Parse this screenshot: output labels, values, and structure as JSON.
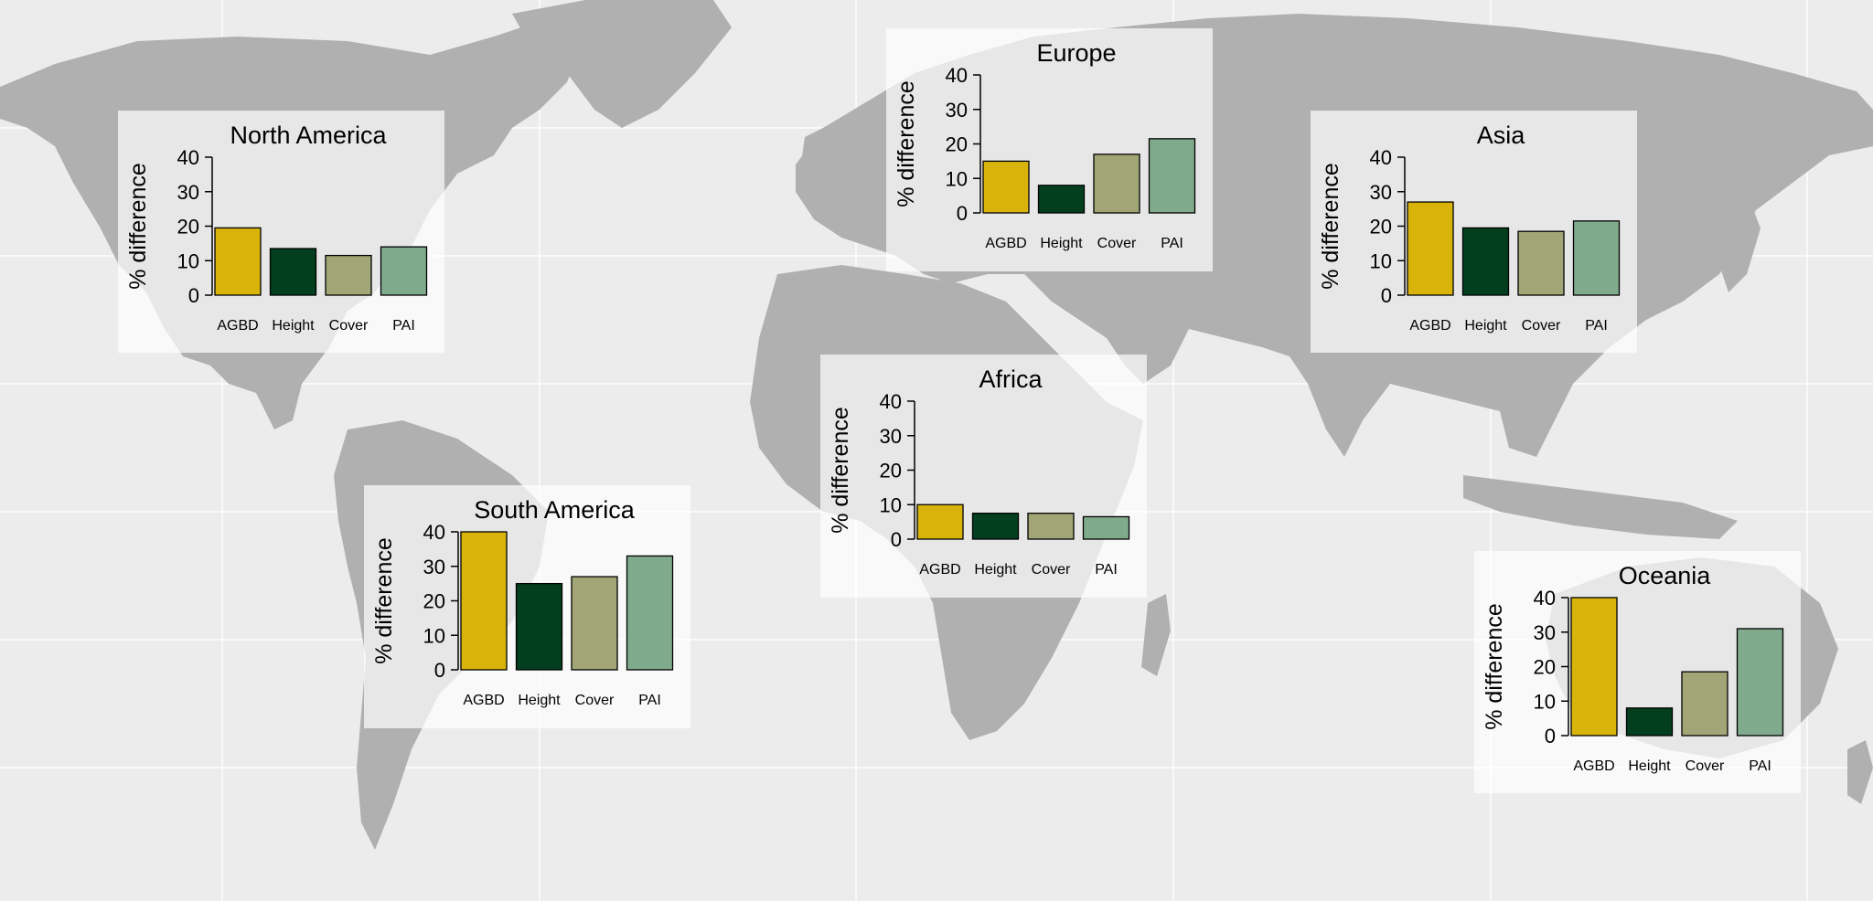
{
  "colors": {
    "ocean": "#ececec",
    "land": "#b0b0b0",
    "grid": "#ffffff",
    "panel": "#ffffff",
    "bar_outline": "#000000"
  },
  "chart_data": [
    {
      "type": "bar",
      "title": "North America",
      "ylabel": "% difference",
      "ylim": [
        0,
        40
      ],
      "yticks": [
        0,
        10,
        20,
        30,
        40
      ],
      "categories": [
        "AGBD",
        "Height",
        "Cover",
        "PAI"
      ],
      "values": [
        19.5,
        13.5,
        11.5,
        14
      ],
      "bar_colors": [
        "#d8b40a",
        "#033f1e",
        "#a2a677",
        "#80aa8c"
      ]
    },
    {
      "type": "bar",
      "title": "Europe",
      "ylabel": "% difference",
      "ylim": [
        0,
        40
      ],
      "yticks": [
        0,
        10,
        20,
        30,
        40
      ],
      "categories": [
        "AGBD",
        "Height",
        "Cover",
        "PAI"
      ],
      "values": [
        15,
        8,
        17,
        21.5
      ],
      "bar_colors": [
        "#d8b40a",
        "#033f1e",
        "#a2a677",
        "#80aa8c"
      ]
    },
    {
      "type": "bar",
      "title": "Asia",
      "ylabel": "% difference",
      "ylim": [
        0,
        40
      ],
      "yticks": [
        0,
        10,
        20,
        30,
        40
      ],
      "categories": [
        "AGBD",
        "Height",
        "Cover",
        "PAI"
      ],
      "values": [
        27,
        19.5,
        18.5,
        21.5
      ],
      "bar_colors": [
        "#d8b40a",
        "#033f1e",
        "#a2a677",
        "#80aa8c"
      ]
    },
    {
      "type": "bar",
      "title": "Africa",
      "ylabel": "% difference",
      "ylim": [
        0,
        40
      ],
      "yticks": [
        0,
        10,
        20,
        30,
        40
      ],
      "categories": [
        "AGBD",
        "Height",
        "Cover",
        "PAI"
      ],
      "values": [
        10,
        7.5,
        7.5,
        6.5
      ],
      "bar_colors": [
        "#d8b40a",
        "#033f1e",
        "#a2a677",
        "#80aa8c"
      ]
    },
    {
      "type": "bar",
      "title": "South America",
      "ylabel": "% difference",
      "ylim": [
        0,
        40
      ],
      "yticks": [
        0,
        10,
        20,
        30,
        40
      ],
      "categories": [
        "AGBD",
        "Height",
        "Cover",
        "PAI"
      ],
      "values": [
        40,
        25,
        27,
        33
      ],
      "bar_colors": [
        "#d8b40a",
        "#033f1e",
        "#a2a677",
        "#80aa8c"
      ]
    },
    {
      "type": "bar",
      "title": "Oceania",
      "ylabel": "% difference",
      "ylim": [
        0,
        40
      ],
      "yticks": [
        0,
        10,
        20,
        30,
        40
      ],
      "categories": [
        "AGBD",
        "Height",
        "Cover",
        "PAI"
      ],
      "values": [
        40,
        8,
        18.5,
        31
      ],
      "bar_colors": [
        "#d8b40a",
        "#033f1e",
        "#a2a677",
        "#80aa8c"
      ]
    }
  ]
}
